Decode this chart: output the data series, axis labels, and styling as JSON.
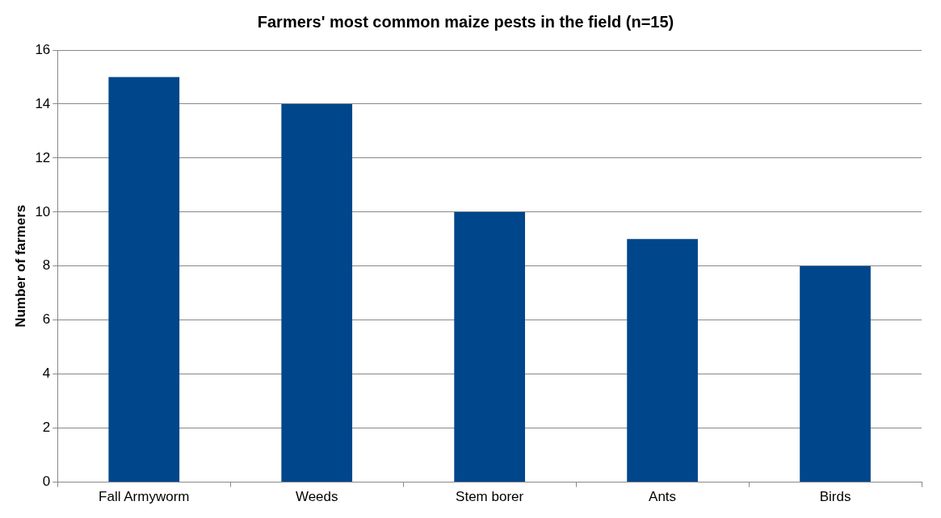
{
  "chart_data": {
    "type": "bar",
    "title": "Farmers' most common maize pests in the field (n=15)",
    "ylabel": "Number of farmers",
    "categories": [
      "Fall Armyworm",
      "Weeds",
      "Stem borer",
      "Ants",
      "Birds"
    ],
    "values": [
      15,
      14,
      10,
      9,
      8
    ],
    "color": "#00468b",
    "ylim": [
      0,
      16
    ],
    "yticks": [
      0,
      2,
      4,
      6,
      8,
      10,
      12,
      14,
      16
    ],
    "grid": "y",
    "legend": false
  }
}
